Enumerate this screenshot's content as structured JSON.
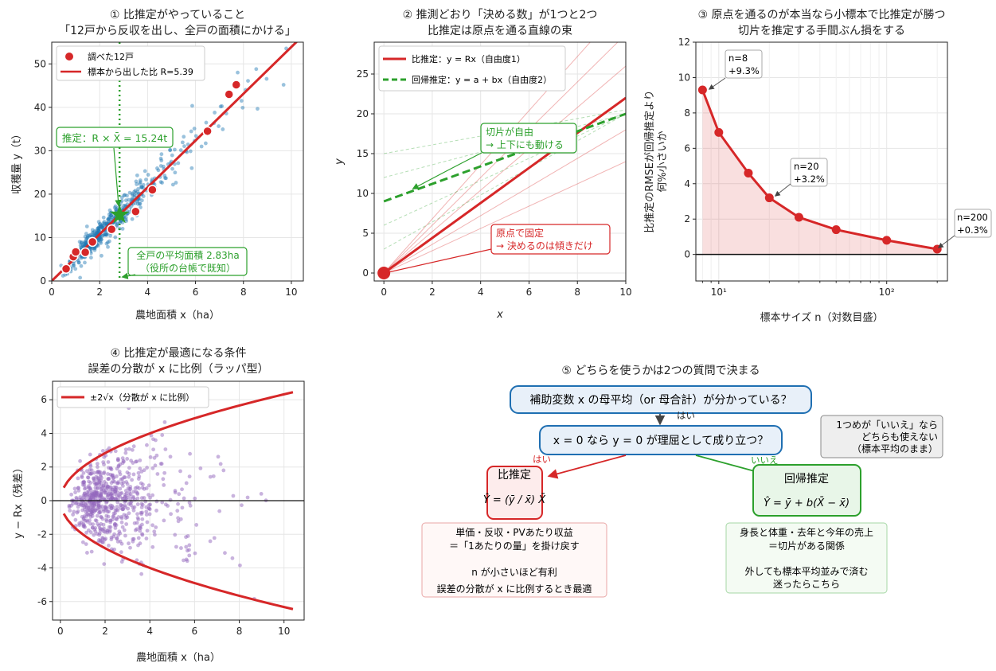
{
  "chart_data": [
    {
      "id": "p1",
      "type": "scatter",
      "title": [
        "① 比推定がやっていること",
        "「12戸から反収を出し、全戸の面積にかける」"
      ],
      "xlabel": "農地面積 x（ha）",
      "ylabel": "収穫量 y（t）",
      "xlim": [
        0,
        10.5
      ],
      "ylim": [
        0,
        55
      ],
      "xticks": [
        0,
        2,
        4,
        6,
        8,
        10
      ],
      "yticks": [
        0,
        10,
        20,
        30,
        40,
        50
      ],
      "grid": true,
      "legend": {
        "position": "top-left",
        "entries": [
          "調べた12戸",
          "標本から出した比 R=5.39"
        ]
      },
      "ratio_R": 5.39,
      "mean_x": 2.83,
      "estimate": 15.24,
      "sample_points": [
        {
          "x": 0.6,
          "y": 2.8
        },
        {
          "x": 0.9,
          "y": 5.6
        },
        {
          "x": 1.0,
          "y": 6.7
        },
        {
          "x": 1.4,
          "y": 6.6
        },
        {
          "x": 1.7,
          "y": 9.0
        },
        {
          "x": 2.5,
          "y": 11.9
        },
        {
          "x": 3.5,
          "y": 16.0
        },
        {
          "x": 4.2,
          "y": 21.0
        },
        {
          "x": 6.5,
          "y": 34.5
        },
        {
          "x": 7.4,
          "y": 43.0
        },
        {
          "x": 7.7,
          "y": 45.2
        },
        {
          "x": 2.9,
          "y": 14.8
        }
      ],
      "annotations": {
        "estimate": "推定：R × X̄ = 15.24t",
        "mean_line": [
          "全戸の平均面積 2.83ha",
          "（役所の台帳で既知）"
        ]
      }
    },
    {
      "id": "p2",
      "type": "line",
      "title": [
        "② 推測どおり「決める数」が1つと2つ",
        "比推定は原点を通る直線の束"
      ],
      "xlabel": "x",
      "ylabel": "y",
      "xlim": [
        -0.4,
        10
      ],
      "ylim": [
        -1,
        29
      ],
      "xticks": [
        0,
        2,
        4,
        6,
        8,
        10
      ],
      "yticks": [
        0,
        5,
        10,
        15,
        20,
        25
      ],
      "grid": true,
      "legend": {
        "position": "top-left",
        "entries": [
          "比推定：y = Rx（自由度1）",
          "回帰推定：y = a + bx（自由度2）"
        ]
      },
      "ratio_line": {
        "slope": 2.2,
        "intercept": 0
      },
      "regression_line": {
        "slope": 1.1,
        "intercept": 9
      },
      "ratio_bundle_slopes": [
        1.4,
        1.8,
        2.6,
        3.0,
        3.4
      ],
      "regression_bundle": [
        {
          "intercept": 15,
          "slope": 0.55
        },
        {
          "intercept": 12,
          "slope": 0.8
        },
        {
          "intercept": 6,
          "slope": 1.4
        },
        {
          "intercept": 3,
          "slope": 1.7
        }
      ],
      "annotations": {
        "intercept_free": [
          "切片が自由",
          "→ 上下にも動ける"
        ],
        "origin_fixed": [
          "原点で固定",
          "→ 決めるのは傾きだけ"
        ]
      }
    },
    {
      "id": "p3",
      "type": "line",
      "title": [
        "③ 原点を通るのが本当なら小標本で比推定が勝つ",
        "切片を推定する手間ぶん損をする"
      ],
      "xlabel": "標本サイズ n（対数目盛）",
      "ylabel": [
        "比推定のRMSEが回帰推定より",
        "何%小さいか"
      ],
      "xscale": "log",
      "xlim": [
        7.3,
        230
      ],
      "ylim": [
        -1.5,
        12
      ],
      "xticks": [
        "10¹",
        "10²"
      ],
      "yticks": [
        0,
        2,
        4,
        6,
        8,
        10,
        12
      ],
      "grid": true,
      "x": [
        8,
        10,
        15,
        20,
        30,
        50,
        100,
        200
      ],
      "y": [
        9.3,
        6.9,
        4.6,
        3.2,
        2.1,
        1.4,
        0.8,
        0.3
      ],
      "labels": [
        {
          "text": [
            "n=8",
            "+9.3%"
          ]
        },
        {
          "text": [
            "n=20",
            "+3.2%"
          ]
        },
        {
          "text": [
            "n=200",
            "+0.3%"
          ]
        }
      ]
    },
    {
      "id": "p4",
      "type": "scatter",
      "title": [
        "④ 比推定が最適になる条件",
        "誤差の分散が x に比例（ラッパ型）"
      ],
      "xlabel": "農地面積 x（ha）",
      "ylabel": "y − Rx（残差）",
      "xlim": [
        -0.35,
        10.9
      ],
      "ylim": [
        -7.1,
        7.1
      ],
      "xticks": [
        0,
        2,
        4,
        6,
        8,
        10
      ],
      "yticks": [
        -6,
        -4,
        -2,
        0,
        2,
        4,
        6
      ],
      "grid": true,
      "legend": {
        "position": "top-left",
        "entries": [
          "±2√x（分散が x に比例）"
        ]
      },
      "envelope": {
        "k": 2,
        "x_from": 0.15,
        "x_to": 10.4
      }
    }
  ],
  "diagram": {
    "title": "⑤ どちらを使うかは2つの質問で決まる",
    "q1": "補助変数 x の母平均（or 母合計）が分かっている？",
    "q1_yes": "はい",
    "q2": "x = 0 なら y = 0 が理屈として成り立つ？",
    "q2_yes": "はい",
    "q2_no": "いいえ",
    "side_note": [
      "1つめが「いいえ」なら",
      "どちらも使えない",
      "（標本平均のまま）"
    ],
    "ratio_box": {
      "title": "比推定",
      "formula": "Ŷ = (ȳ / x̄) X̄"
    },
    "reg_box": {
      "title": "回帰推定",
      "formula": "Ŷ = ȳ + b(X̄ − x̄)"
    },
    "ratio_note": [
      "単価・反収・PVあたり収益",
      "＝「1あたりの量」を掛け戻す",
      "",
      "n が小さいほど有利",
      "誤差の分散が x に比例するとき最適"
    ],
    "reg_note": [
      "身長と体重・去年と今年の売上",
      "＝切片がある関係",
      "",
      "外しても標本平均並みで済む",
      "迷ったらこちら"
    ]
  }
}
